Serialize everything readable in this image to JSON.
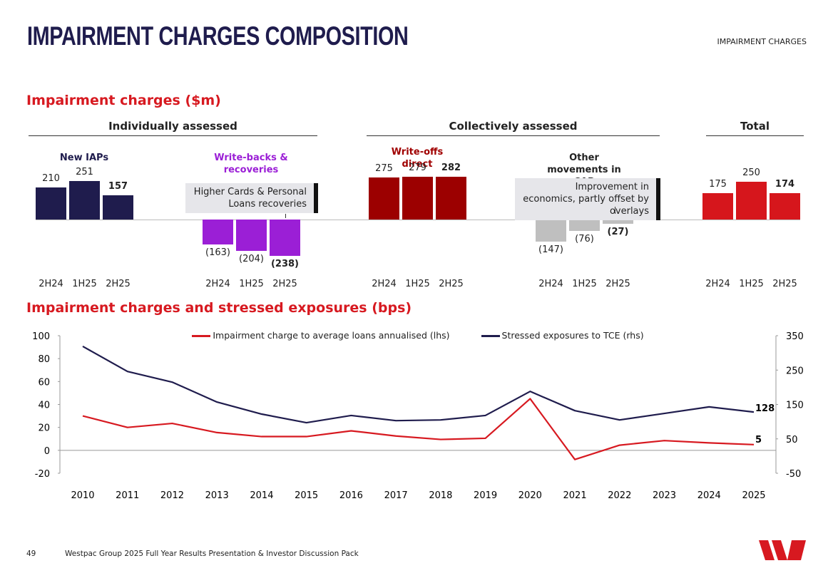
{
  "header": {
    "title": "IMPAIRMENT CHARGES COMPOSITION",
    "tag": "IMPAIRMENT CHARGES"
  },
  "footer": {
    "page": "49",
    "text": "Westpac Group 2025 Full Year Results Presentation & Investor Discussion Pack"
  },
  "chart_data": [
    {
      "type": "bar",
      "title": "Impairment charges ($m)",
      "sections": [
        {
          "label": "Individually assessed",
          "panels": [
            {
              "name": "New IAPs",
              "name_color": "#1f1c4d",
              "color": "#1f1c4d",
              "categories": [
                "2H24",
                "1H25",
                "2H25"
              ],
              "values": [
                210,
                251,
                157
              ]
            },
            {
              "name": "Write-backs & recoveries",
              "name_color": "#9b1fd6",
              "color": "#9b1fd6",
              "categories": [
                "2H24",
                "1H25",
                "2H25"
              ],
              "values": [
                -163,
                -204,
                -238
              ],
              "value_labels": [
                "(163)",
                "(204)",
                "(238)"
              ],
              "annotation": "Higher Cards & Personal Loans recoveries"
            }
          ]
        },
        {
          "label": "Collectively assessed",
          "panels": [
            {
              "name": "Write-offs direct",
              "name_color": "#a00000",
              "color": "#9c0000",
              "categories": [
                "2H24",
                "1H25",
                "2H25"
              ],
              "values": [
                275,
                279,
                282
              ]
            },
            {
              "name": "Other movements in CAP",
              "name_color": "#222222",
              "color": "#bfbfbf",
              "categories": [
                "2H24",
                "1H25",
                "2H25"
              ],
              "values": [
                -147,
                -76,
                -27
              ],
              "value_labels": [
                "(147)",
                "(76)",
                "(27)"
              ],
              "annotation": "Improvement in economics, partly offset by overlays"
            }
          ]
        },
        {
          "label": "Total",
          "panels": [
            {
              "color": "#d6161c",
              "categories": [
                "2H24",
                "1H25",
                "2H25"
              ],
              "values": [
                175,
                250,
                174
              ]
            }
          ]
        }
      ]
    },
    {
      "type": "line",
      "title": "Impairment charges and stressed exposures (bps)",
      "categories": [
        "2010",
        "2011",
        "2012",
        "2013",
        "2014",
        "2015",
        "2016",
        "2017",
        "2018",
        "2019",
        "2020",
        "2021",
        "2022",
        "2023",
        "2024",
        "2025"
      ],
      "series": [
        {
          "name": "Impairment charge to average loans annualised (lhs)",
          "color": "#d71920",
          "values": [
            30,
            20,
            23.5,
            15.5,
            12,
            12,
            17,
            12.5,
            9.5,
            10.5,
            45,
            -8,
            4.5,
            8.5,
            6.5,
            5
          ]
        },
        {
          "name": "Stressed exposures to TCE (rhs)",
          "color": "#1f1c4d",
          "axis": "y2",
          "values": [
            319,
            246,
            215,
            157,
            122,
            97,
            118,
            103,
            105,
            118,
            188,
            132,
            105,
            124,
            143,
            128
          ]
        }
      ],
      "ylim": [
        -20,
        100
      ],
      "yticks": [
        -20,
        0,
        20,
        40,
        60,
        80,
        100
      ],
      "y2lim": [
        -50,
        350
      ],
      "y2ticks": [
        -50,
        50,
        150,
        250,
        350
      ],
      "legend": "top"
    }
  ]
}
